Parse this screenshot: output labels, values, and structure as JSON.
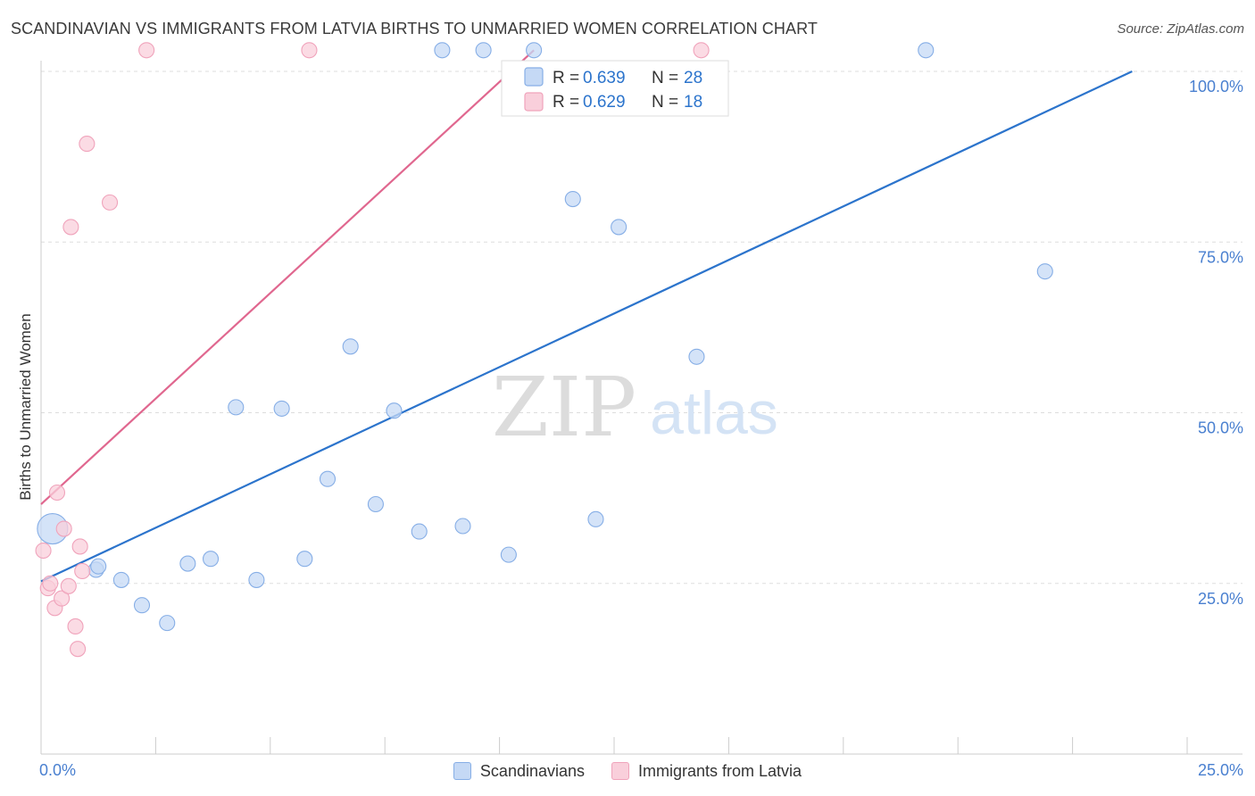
{
  "header": {
    "title": "SCANDINAVIAN VS IMMIGRANTS FROM LATVIA BIRTHS TO UNMARRIED WOMEN CORRELATION CHART",
    "source": "Source: ZipAtlas.com"
  },
  "watermark": {
    "zip": "ZIP",
    "atlas": "atlas"
  },
  "colors": {
    "blue_fill": "#c5d9f5",
    "blue_stroke": "#86aee6",
    "blue_line": "#2c74cc",
    "pink_fill": "#f9cfdb",
    "pink_stroke": "#f0a3bb",
    "pink_line": "#e0678f",
    "tick_label": "#4a80d0",
    "grid": "#dddddd"
  },
  "legend_box": {
    "rows": [
      {
        "series": "Scandinavians",
        "r_label": "R =",
        "r_value": "0.639",
        "n_label": "N =",
        "n_value": "28"
      },
      {
        "series": "Immigrants from Latvia",
        "r_label": "R =",
        "r_value": "0.629",
        "n_label": "N =",
        "n_value": "18"
      }
    ]
  },
  "chart_data": {
    "type": "scatter",
    "title": "SCANDINAVIAN VS IMMIGRANTS FROM LATVIA BIRTHS TO UNMARRIED WOMEN CORRELATION CHART",
    "xlabel": "",
    "ylabel": "Births to Unmarried Women",
    "xlim": [
      0,
      25
    ],
    "ylim": [
      0,
      100
    ],
    "x_tick_labels": [
      {
        "value": 0,
        "label": "0.0%"
      },
      {
        "value": 25,
        "label": "25.0%"
      }
    ],
    "y_tick_labels": [
      {
        "value": 25,
        "label": "25.0%"
      },
      {
        "value": 50,
        "label": "50.0%"
      },
      {
        "value": 75,
        "label": "75.0%"
      },
      {
        "value": 100,
        "label": "100.0%"
      }
    ],
    "grid": true,
    "legend_position": "bottom-center",
    "series": [
      {
        "name": "Scandinavians",
        "color": "blue",
        "r": 0.639,
        "n": 28,
        "trend": {
          "x0": 0,
          "y0": 25.3,
          "x1": 23.8,
          "y1": 100
        },
        "points": [
          {
            "x": 0.25,
            "y": 33.0,
            "size": "large"
          },
          {
            "x": 1.2,
            "y": 27.0
          },
          {
            "x": 1.75,
            "y": 25.5
          },
          {
            "x": 2.2,
            "y": 21.8
          },
          {
            "x": 2.75,
            "y": 19.2
          },
          {
            "x": 3.2,
            "y": 27.9
          },
          {
            "x": 3.7,
            "y": 28.6
          },
          {
            "x": 4.25,
            "y": 50.8
          },
          {
            "x": 4.7,
            "y": 25.5
          },
          {
            "x": 5.25,
            "y": 50.6
          },
          {
            "x": 5.75,
            "y": 28.6
          },
          {
            "x": 6.25,
            "y": 40.3
          },
          {
            "x": 6.75,
            "y": 59.7
          },
          {
            "x": 7.3,
            "y": 36.6
          },
          {
            "x": 7.7,
            "y": 50.3
          },
          {
            "x": 8.25,
            "y": 32.6
          },
          {
            "x": 8.75,
            "y": 103.1
          },
          {
            "x": 9.2,
            "y": 33.4
          },
          {
            "x": 9.65,
            "y": 103.1
          },
          {
            "x": 10.2,
            "y": 29.2
          },
          {
            "x": 10.75,
            "y": 103.1
          },
          {
            "x": 11.6,
            "y": 81.3
          },
          {
            "x": 12.1,
            "y": 34.4
          },
          {
            "x": 12.6,
            "y": 77.2
          },
          {
            "x": 14.3,
            "y": 58.2
          },
          {
            "x": 19.3,
            "y": 103.1
          },
          {
            "x": 21.9,
            "y": 70.7
          },
          {
            "x": 1.25,
            "y": 27.5
          }
        ]
      },
      {
        "name": "Immigrants from Latvia",
        "color": "pink",
        "r": 0.629,
        "n": 18,
        "trend": {
          "x0": 0,
          "y0": 36.6,
          "x1": 10.75,
          "y1": 103.1
        },
        "points": [
          {
            "x": 0.05,
            "y": 29.8
          },
          {
            "x": 0.15,
            "y": 24.3
          },
          {
            "x": 0.2,
            "y": 25.0
          },
          {
            "x": 0.3,
            "y": 21.4
          },
          {
            "x": 0.35,
            "y": 38.3
          },
          {
            "x": 0.45,
            "y": 22.8
          },
          {
            "x": 0.5,
            "y": 33.0
          },
          {
            "x": 0.6,
            "y": 24.6
          },
          {
            "x": 0.65,
            "y": 77.2
          },
          {
            "x": 0.75,
            "y": 18.7
          },
          {
            "x": 0.8,
            "y": 15.4
          },
          {
            "x": 0.85,
            "y": 30.4
          },
          {
            "x": 0.9,
            "y": 26.8
          },
          {
            "x": 1.0,
            "y": 89.4
          },
          {
            "x": 1.5,
            "y": 80.8
          },
          {
            "x": 2.3,
            "y": 103.1
          },
          {
            "x": 5.85,
            "y": 103.1
          },
          {
            "x": 14.4,
            "y": 103.1
          }
        ]
      }
    ]
  }
}
